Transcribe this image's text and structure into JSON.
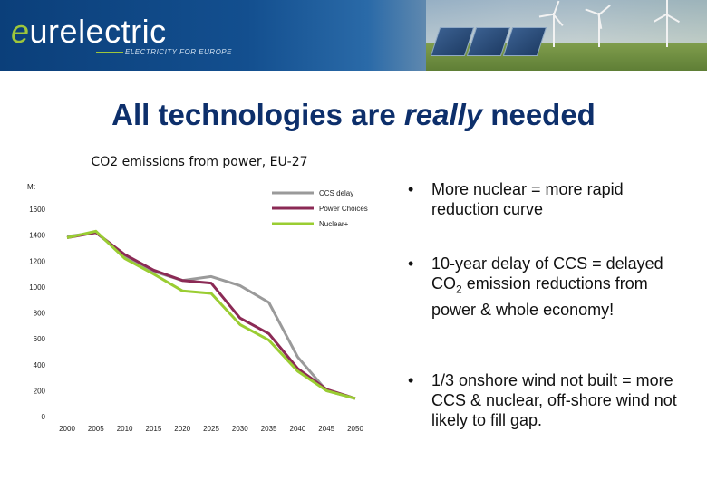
{
  "header": {
    "logo_prefix": "e",
    "logo_rest": "urelectric",
    "tagline": "ELECTRICITY FOR EUROPE"
  },
  "slide": {
    "title_before": "All technologies are ",
    "title_emph": "really",
    "title_after": " needed"
  },
  "chart_data": {
    "type": "line",
    "title": "CO2 emissions from power, EU-27",
    "ylabel": "Mt",
    "xlabel": "",
    "x": [
      "2000",
      "2005",
      "2010",
      "2015",
      "2020",
      "2025",
      "2030",
      "2035",
      "2040",
      "2045",
      "2050"
    ],
    "ylim": [
      0,
      1600
    ],
    "yticks": [
      0,
      200,
      400,
      600,
      800,
      1000,
      1200,
      1400,
      1600
    ],
    "grid": false,
    "legend_position": "top-right",
    "series": [
      {
        "name": "CCS delay",
        "color": "#9a9a9a",
        "values": [
          1390,
          1420,
          1240,
          1120,
          1050,
          1080,
          1010,
          880,
          460,
          200,
          140
        ]
      },
      {
        "name": "Power Choices",
        "color": "#8b2a55",
        "values": [
          1380,
          1420,
          1250,
          1130,
          1050,
          1030,
          760,
          640,
          370,
          210,
          140
        ]
      },
      {
        "name": "Nuclear+",
        "color": "#9acd32",
        "values": [
          1380,
          1430,
          1220,
          1100,
          970,
          950,
          710,
          590,
          350,
          200,
          140
        ]
      }
    ]
  },
  "bullets": [
    {
      "symbol": "•",
      "text": "More nuclear = more rapid reduction curve"
    },
    {
      "symbol": "•",
      "text_before": "10-year delay of CCS = delayed CO",
      "sub": "2",
      "text_after": " emission reductions from power & whole economy!"
    },
    {
      "symbol": "•",
      "text": "1/3 onshore wind not built = more CCS & nuclear, off-shore wind not likely to fill gap."
    }
  ]
}
